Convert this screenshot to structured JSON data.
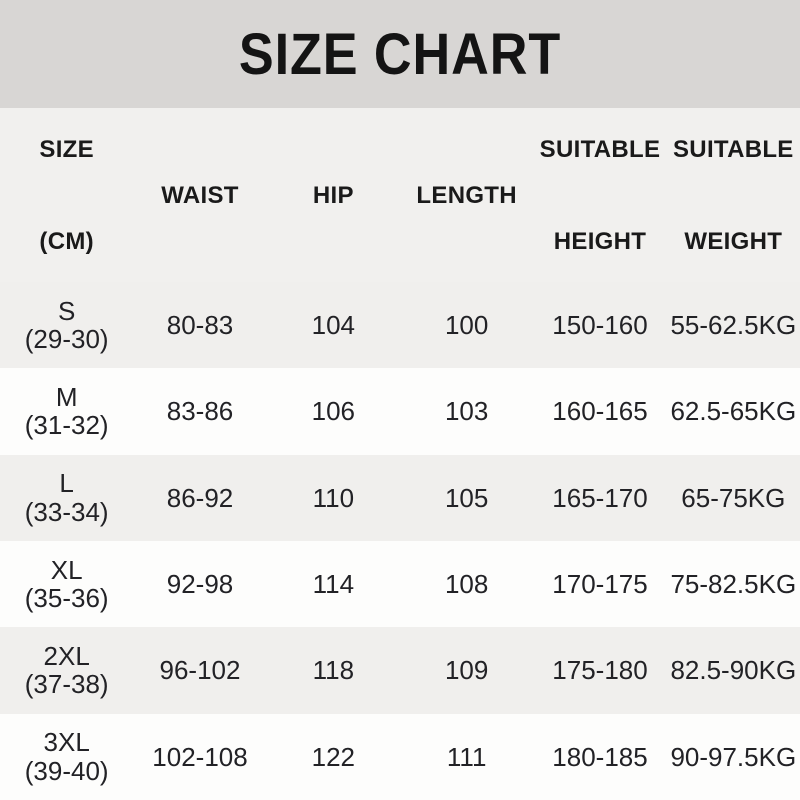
{
  "title": "SIZE CHART",
  "colors": {
    "title_band_bg": "#d8d6d4",
    "header_bg": "#f1f0ee",
    "row_light_bg": "#fdfdfc",
    "row_dark_bg": "#f0efed",
    "text": "#1c1c1c"
  },
  "table": {
    "header": {
      "size_top": "SIZE",
      "size_bottom": "(CM)",
      "waist": "WAIST",
      "hip": "HIP",
      "length": "LENGTH",
      "suitable_height_top": "SUITABLE",
      "suitable_height_bottom": "HEIGHT",
      "suitable_weight_top": "SUITABLE",
      "suitable_weight_bottom": "WEIGHT"
    },
    "rows": [
      {
        "size": "S",
        "range": "(29-30)",
        "waist": "80-83",
        "hip": "104",
        "length": "100",
        "height": "150-160",
        "weight": "55-62.5KG"
      },
      {
        "size": "M",
        "range": "(31-32)",
        "waist": "83-86",
        "hip": "106",
        "length": "103",
        "height": "160-165",
        "weight": "62.5-65KG"
      },
      {
        "size": "L",
        "range": "(33-34)",
        "waist": "86-92",
        "hip": "110",
        "length": "105",
        "height": "165-170",
        "weight": "65-75KG"
      },
      {
        "size": "XL",
        "range": "(35-36)",
        "waist": "92-98",
        "hip": "114",
        "length": "108",
        "height": "170-175",
        "weight": "75-82.5KG"
      },
      {
        "size": "2XL",
        "range": "(37-38)",
        "waist": "96-102",
        "hip": "118",
        "length": "109",
        "height": "175-180",
        "weight": "82.5-90KG"
      },
      {
        "size": "3XL",
        "range": "(39-40)",
        "waist": "102-108",
        "hip": "122",
        "length": "111",
        "height": "180-185",
        "weight": "90-97.5KG"
      }
    ]
  }
}
